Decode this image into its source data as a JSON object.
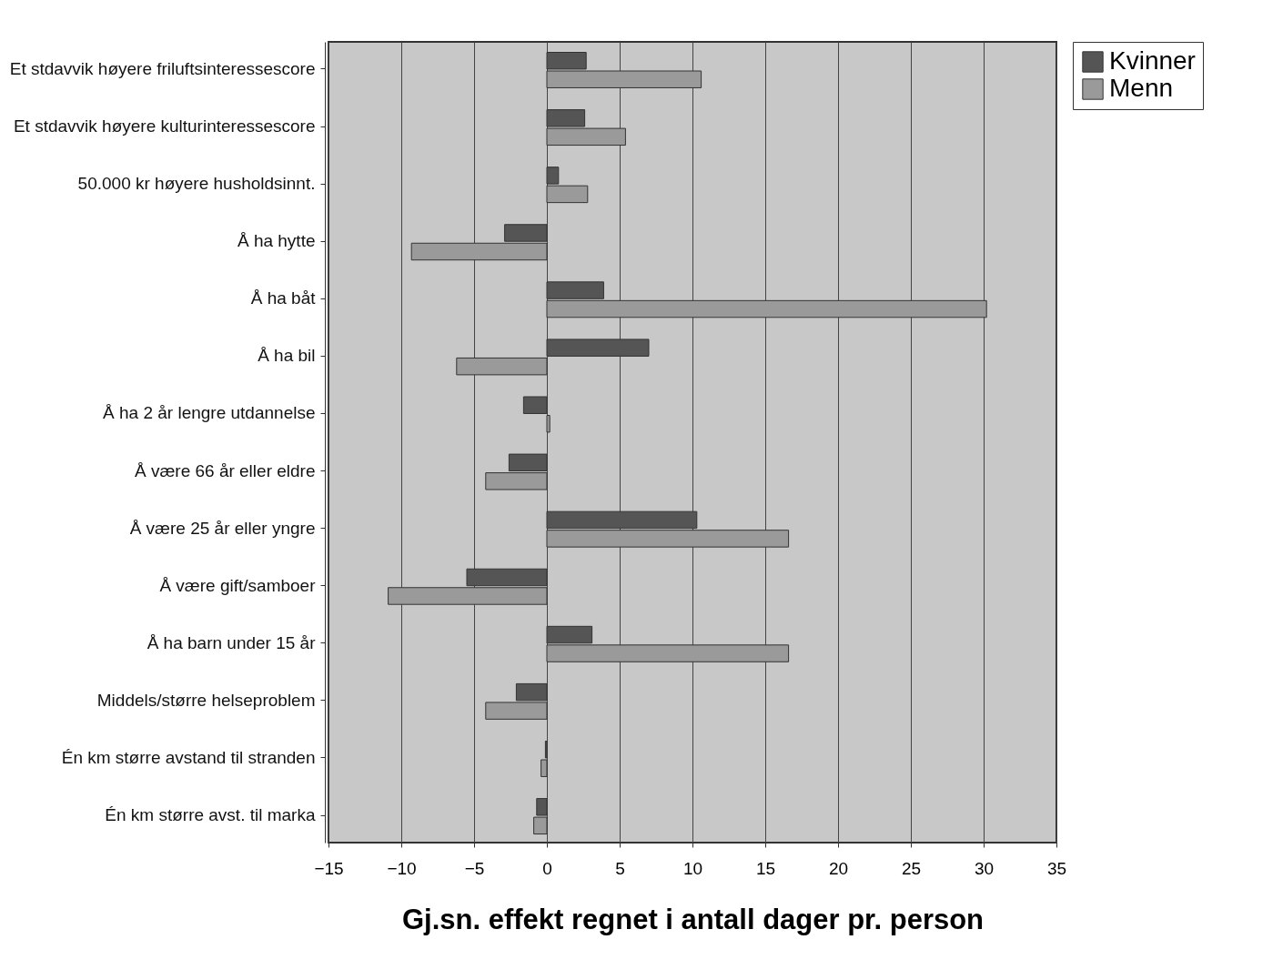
{
  "chart_data": {
    "type": "bar",
    "orientation": "horizontal",
    "xlabel": "Gj.sn. effekt regnet i antall dager pr. person",
    "categories": [
      "Et stdavvik høyere friluftsinteressescore",
      "Et stdavvik høyere kulturinteressescore",
      "50.000 kr høyere husholdsinnt.",
      "Å ha hytte",
      "Å ha båt",
      "Å ha bil",
      "Å ha 2 år lengre utdannelse",
      "Å være 66 år eller eldre",
      "Å være 25 år eller yngre",
      "Å være gift/samboer",
      "Å ha barn under 15 år",
      "Middels/større helseproblem",
      "Én km større avstand til stranden",
      "Én km større avst. til marka"
    ],
    "series": [
      {
        "name": "Kvinner",
        "color": "#555555",
        "values": [
          2.7,
          2.6,
          0.8,
          -2.9,
          3.9,
          7.0,
          -1.6,
          -2.6,
          10.3,
          -5.5,
          3.1,
          -2.1,
          -0.1,
          -0.7
        ]
      },
      {
        "name": "Menn",
        "color": "#9a9a9a",
        "values": [
          10.6,
          5.4,
          2.8,
          -9.3,
          30.2,
          -6.2,
          0.2,
          -4.2,
          16.6,
          -10.9,
          16.6,
          -4.2,
          -0.4,
          -0.9
        ]
      }
    ],
    "xlim": [
      -15,
      35
    ],
    "xticks": [
      -15,
      -10,
      -5,
      0,
      5,
      10,
      15,
      20,
      25,
      30,
      35
    ],
    "grid": "x",
    "legend": "right"
  }
}
